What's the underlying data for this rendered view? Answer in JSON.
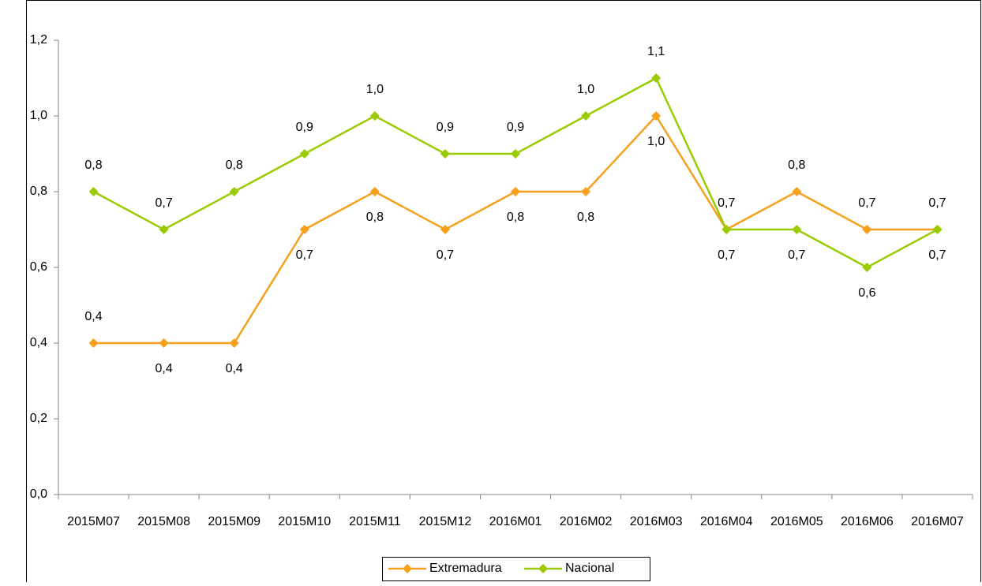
{
  "chart_data": {
    "type": "line",
    "categories": [
      "2015M07",
      "2015M08",
      "2015M09",
      "2015M10",
      "2015M11",
      "2015M12",
      "2016M01",
      "2016M02",
      "2016M03",
      "2016M04",
      "2016M05",
      "2016M06",
      "2016M07"
    ],
    "series": [
      {
        "name": "Extremadura",
        "color": "#f7a01c",
        "values": [
          0.4,
          0.4,
          0.4,
          0.7,
          0.8,
          0.7,
          0.8,
          0.8,
          1.0,
          0.7,
          0.8,
          0.7,
          0.7
        ],
        "value_labels": [
          "0,4",
          "0,4",
          "0,4",
          "0,7",
          "0,8",
          "0,7",
          "0,8",
          "0,8",
          "1,0",
          "0,7",
          "0,8",
          "0,7",
          "0,7"
        ]
      },
      {
        "name": "Nacional",
        "color": "#99cc00",
        "values": [
          0.8,
          0.7,
          0.8,
          0.9,
          1.0,
          0.9,
          0.9,
          1.0,
          1.1,
          0.7,
          0.7,
          0.6,
          0.7
        ],
        "value_labels": [
          "0,8",
          "0,7",
          "0,8",
          "0,9",
          "1,0",
          "0,9",
          "0,9",
          "1,0",
          "1,1",
          "0,7",
          "0,7",
          "0,6",
          "0,7"
        ]
      }
    ],
    "ylim": [
      0,
      1.2
    ],
    "yticks": [
      {
        "value": 0,
        "label": "0,0"
      },
      {
        "value": 0.2,
        "label": "0,2"
      },
      {
        "value": 0.4,
        "label": "0,4"
      },
      {
        "value": 0.6,
        "label": "0,6"
      },
      {
        "value": 0.8,
        "label": "0,8"
      },
      {
        "value": 1.0,
        "label": "1,0"
      },
      {
        "value": 1.2,
        "label": "1,2"
      }
    ],
    "legend": "bottom"
  }
}
